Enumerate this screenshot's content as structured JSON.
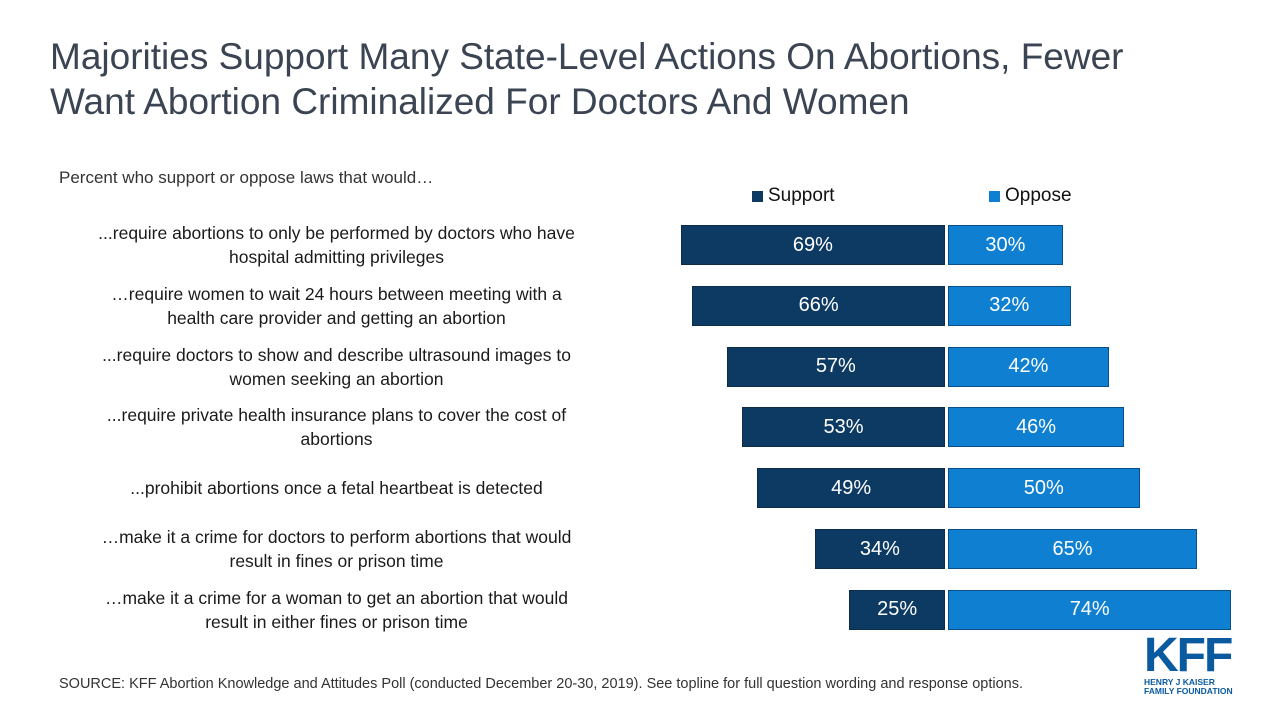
{
  "title_line1": "Majorities Support Many State-Level Actions On Abortions, Fewer",
  "title_line2": "Want Abortion Criminalized For Doctors And Women",
  "subtitle": "Percent who support or oppose laws that would…",
  "source": "SOURCE: KFF Abortion Knowledge and Attitudes Poll (conducted December 20-30, 2019). See topline for full question wording and response options.",
  "logo": {
    "letters": "KFF",
    "line1": "HENRY J KAISER",
    "line2": "FAMILY FOUNDATION"
  },
  "colors": {
    "support": "#0d3a63",
    "oppose": "#0e7fd1",
    "title": "#3b4452"
  },
  "chart_data": {
    "type": "bar",
    "orientation": "horizontal-diverging",
    "legend_position": "top",
    "grid": false,
    "series": [
      {
        "name": "Support",
        "values": [
          69,
          66,
          57,
          53,
          49,
          34,
          25
        ]
      },
      {
        "name": "Oppose",
        "values": [
          30,
          32,
          42,
          46,
          50,
          65,
          74
        ]
      }
    ],
    "categories": [
      {
        "line1": "...require abortions to only be performed by doctors who have",
        "line2": "hospital admitting privileges"
      },
      {
        "line1": "…require women to wait 24 hours between meeting with a",
        "line2": "health care provider and getting an abortion"
      },
      {
        "line1": "...require doctors to show and describe ultrasound images to",
        "line2": "women seeking an abortion"
      },
      {
        "line1": "...require private health insurance plans to cover the cost of",
        "line2": "abortions"
      },
      {
        "line1": "...prohibit abortions once a fetal heartbeat is detected",
        "line2": ""
      },
      {
        "line1": "…make it a crime for doctors to perform abortions that would",
        "line2": "result in fines or prison time"
      },
      {
        "line1": "…make it a crime for a woman to get an abortion that would",
        "line2": "result in either fines or prison time"
      }
    ],
    "value_suffix": "%"
  }
}
